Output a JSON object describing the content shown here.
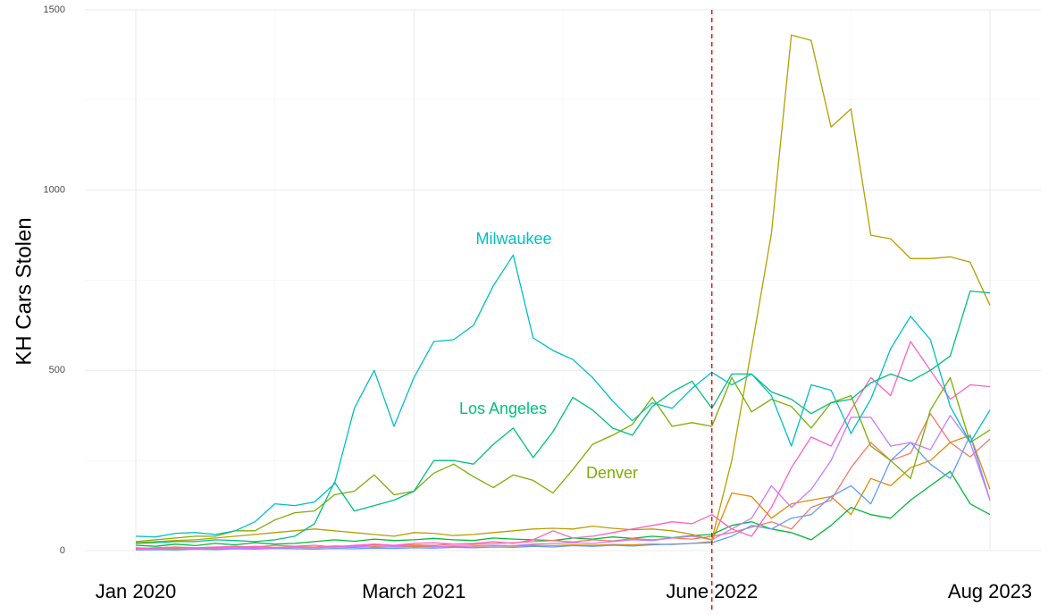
{
  "chart_data": {
    "type": "line",
    "y_label": "KH Cars Stolen",
    "x": [
      "2020-01",
      "2020-02",
      "2020-03",
      "2020-04",
      "2020-05",
      "2020-06",
      "2020-07",
      "2020-08",
      "2020-09",
      "2020-10",
      "2020-11",
      "2020-12",
      "2021-01",
      "2021-02",
      "2021-03",
      "2021-04",
      "2021-05",
      "2021-06",
      "2021-07",
      "2021-08",
      "2021-09",
      "2021-10",
      "2021-11",
      "2021-12",
      "2022-01",
      "2022-02",
      "2022-03",
      "2022-04",
      "2022-05",
      "2022-06",
      "2022-07",
      "2022-08",
      "2022-09",
      "2022-10",
      "2022-11",
      "2022-12",
      "2023-01",
      "2023-02",
      "2023-03",
      "2023-04",
      "2023-05",
      "2023-06",
      "2023-07",
      "2023-08"
    ],
    "xticks": [
      {
        "value": "2020-01",
        "label": "Jan 2020"
      },
      {
        "value": "2021-03",
        "label": "March 2021"
      },
      {
        "value": "2022-06",
        "label": "June 2022"
      },
      {
        "value": "2023-08",
        "label": "Aug 2023"
      }
    ],
    "ylim": [
      0,
      1500
    ],
    "yticks": [
      0,
      500,
      1000,
      1500
    ],
    "grid": true,
    "vline": "2022-06",
    "vline_color": "#e00000",
    "series": [
      {
        "name": "Milwaukee",
        "color": "#00BFC4",
        "values": [
          40,
          38,
          48,
          50,
          45,
          55,
          80,
          130,
          125,
          135,
          185,
          395,
          500,
          345,
          480,
          580,
          585,
          625,
          735,
          820,
          590,
          555,
          530,
          480,
          415,
          360,
          410,
          395,
          450,
          495,
          460,
          490,
          430,
          290,
          460,
          445,
          325,
          420,
          560,
          650,
          585,
          400,
          300,
          390
        ]
      },
      {
        "name": "Los Angeles",
        "color": "#00BF7D",
        "values": [
          20,
          22,
          25,
          25,
          30,
          28,
          25,
          30,
          40,
          75,
          190,
          110,
          125,
          140,
          165,
          250,
          250,
          240,
          295,
          340,
          258,
          330,
          425,
          390,
          340,
          320,
          400,
          440,
          470,
          395,
          490,
          490,
          440,
          420,
          380,
          410,
          420,
          465,
          490,
          470,
          500,
          540,
          720,
          715
        ]
      },
      {
        "name": "Denver",
        "color": "#7CAE00",
        "values": [
          25,
          30,
          35,
          40,
          40,
          55,
          55,
          85,
          105,
          110,
          155,
          165,
          210,
          155,
          165,
          215,
          240,
          205,
          175,
          210,
          195,
          160,
          225,
          295,
          320,
          350,
          425,
          345,
          355,
          345,
          480,
          385,
          420,
          400,
          340,
          410,
          430,
          290,
          250,
          200,
          390,
          480,
          300,
          335
        ]
      },
      {
        "color": "#B79F00",
        "values": [
          22,
          25,
          28,
          30,
          35,
          40,
          45,
          50,
          55,
          60,
          55,
          50,
          45,
          40,
          50,
          48,
          42,
          45,
          50,
          55,
          60,
          62,
          60,
          68,
          62,
          58,
          60,
          55,
          45,
          30,
          250,
          560,
          880,
          1430,
          1415,
          1175,
          1225,
          875,
          865,
          810,
          810,
          815,
          800,
          680
        ]
      },
      {
        "color": "#FF61C3",
        "values": [
          5,
          8,
          10,
          8,
          10,
          12,
          10,
          15,
          12,
          15,
          10,
          15,
          18,
          15,
          20,
          22,
          18,
          20,
          25,
          20,
          30,
          55,
          35,
          40,
          50,
          60,
          70,
          80,
          75,
          100,
          60,
          40,
          120,
          230,
          315,
          290,
          390,
          480,
          430,
          580,
          500,
          420,
          460,
          455
        ]
      },
      {
        "color": "#C77CFF",
        "values": [
          3,
          5,
          4,
          6,
          5,
          8,
          6,
          7,
          9,
          8,
          10,
          12,
          9,
          11,
          14,
          12,
          10,
          13,
          15,
          14,
          18,
          20,
          22,
          20,
          25,
          30,
          28,
          35,
          40,
          30,
          60,
          90,
          180,
          120,
          170,
          250,
          370,
          370,
          290,
          300,
          280,
          375,
          300,
          140
        ]
      },
      {
        "color": "#619CFF",
        "values": [
          2,
          3,
          2,
          4,
          3,
          5,
          4,
          6,
          5,
          4,
          6,
          5,
          7,
          6,
          8,
          7,
          9,
          8,
          10,
          9,
          12,
          10,
          14,
          12,
          15,
          13,
          16,
          18,
          20,
          22,
          40,
          70,
          60,
          90,
          100,
          150,
          180,
          130,
          250,
          300,
          240,
          200,
          320,
          140
        ]
      },
      {
        "color": "#F8766D",
        "values": [
          8,
          6,
          9,
          7,
          10,
          8,
          12,
          9,
          11,
          10,
          13,
          12,
          15,
          14,
          16,
          15,
          18,
          17,
          20,
          22,
          25,
          28,
          24,
          30,
          27,
          33,
          30,
          35,
          32,
          40,
          50,
          65,
          80,
          60,
          120,
          140,
          230,
          300,
          250,
          270,
          380,
          300,
          260,
          310
        ]
      },
      {
        "color": "#00BA38",
        "values": [
          15,
          12,
          18,
          14,
          20,
          16,
          22,
          18,
          20,
          25,
          30,
          26,
          32,
          28,
          30,
          34,
          30,
          28,
          35,
          32,
          30,
          28,
          35,
          32,
          38,
          34,
          40,
          36,
          42,
          45,
          70,
          80,
          60,
          50,
          30,
          70,
          120,
          100,
          90,
          140,
          180,
          220,
          130,
          100
        ]
      },
      {
        "color": "#DE8C00",
        "values": [
          4,
          5,
          6,
          5,
          7,
          6,
          8,
          7,
          9,
          8,
          10,
          9,
          11,
          10,
          12,
          11,
          13,
          12,
          14,
          13,
          15,
          14,
          16,
          15,
          17,
          16,
          18,
          17,
          20,
          25,
          160,
          150,
          90,
          130,
          140,
          150,
          100,
          200,
          180,
          230,
          250,
          300,
          320,
          170
        ]
      }
    ]
  }
}
